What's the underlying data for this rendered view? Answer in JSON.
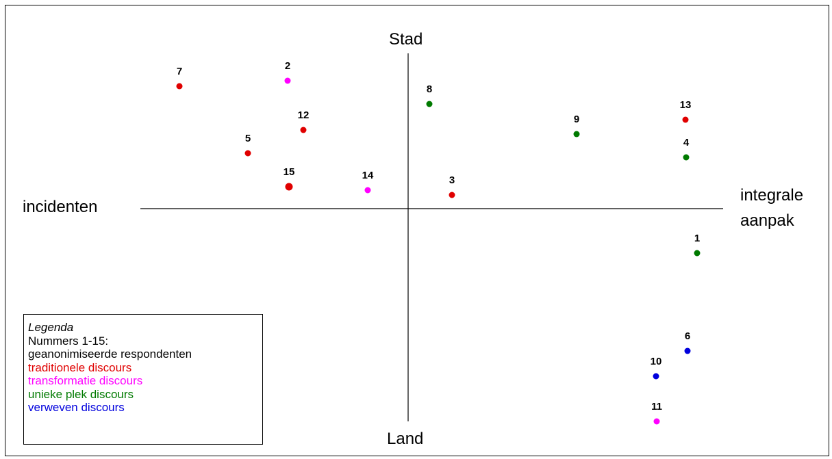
{
  "axes": {
    "top": "Stad",
    "bottom": "Land",
    "left": "incidenten",
    "right_line1": "integrale",
    "right_line2": "aanpak"
  },
  "legend": {
    "title": "Legenda",
    "line1": "Nummers 1-15:",
    "line2": "geanonimiseerde respondenten",
    "items": [
      {
        "label": "traditionele discours",
        "color": "#e00000"
      },
      {
        "label": "transformatie discours",
        "color": "#ff00ff"
      },
      {
        "label": "unieke plek discours",
        "color": "#007a00"
      },
      {
        "label": "verweven discours",
        "color": "#0000dd"
      }
    ]
  },
  "points": [
    {
      "label": "1",
      "group": 2
    },
    {
      "label": "2",
      "group": 1
    },
    {
      "label": "3",
      "group": 0
    },
    {
      "label": "4",
      "group": 2
    },
    {
      "label": "5",
      "group": 0
    },
    {
      "label": "6",
      "group": 3
    },
    {
      "label": "7",
      "group": 0
    },
    {
      "label": "8",
      "group": 2
    },
    {
      "label": "9",
      "group": 2
    },
    {
      "label": "10",
      "group": 3
    },
    {
      "label": "11",
      "group": 1
    },
    {
      "label": "12",
      "group": 0
    },
    {
      "label": "13",
      "group": 0
    },
    {
      "label": "14",
      "group": 1
    },
    {
      "label": "15",
      "group": 0
    }
  ]
}
